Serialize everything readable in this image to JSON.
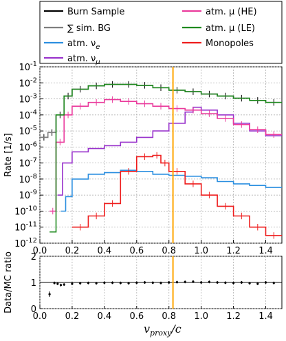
{
  "chart_data": [
    {
      "type": "line",
      "panel": "main",
      "ylabel": "Rate [1/s]",
      "yscale": "log",
      "ylim": [
        1e-12,
        0.1
      ],
      "xlim": [
        0.0,
        1.5
      ],
      "grid": true,
      "legend_position": "top (above plot)",
      "x_ticks": [
        "0.0",
        "0.2",
        "0.4",
        "0.6",
        "0.8",
        "1.0",
        "1.2",
        "1.4"
      ],
      "y_ticks": [
        "10^-12",
        "10^-11",
        "10^-10",
        "10^-9",
        "10^-8",
        "10^-7",
        "10^-6",
        "10^-5",
        "10^-4",
        "10^-3",
        "10^-2",
        "10^-1"
      ],
      "cut_line_x": 0.825,
      "series": [
        {
          "name": "Burn Sample",
          "color": "#000000",
          "style": "steps-with-errorbars",
          "x": [
            0.0,
            0.05,
            0.1,
            0.15,
            0.2,
            0.3,
            0.4,
            0.5,
            0.6,
            0.7,
            0.8,
            0.9,
            1.0,
            1.1,
            1.2,
            1.3,
            1.4,
            1.5
          ],
          "y": [
            4e-06,
            8e-06,
            0.0001,
            0.0015,
            0.004,
            0.0065,
            0.008,
            0.008,
            0.007,
            0.005,
            0.0035,
            0.0028,
            0.002,
            0.0015,
            0.0011,
            0.0008,
            0.0006,
            0.0004
          ]
        },
        {
          "name": "sim. BG",
          "label_prefix": "∑",
          "color": "#7f7f7f",
          "style": "steps",
          "x": [
            0.0,
            0.05,
            0.1,
            0.15,
            0.2,
            0.3,
            0.4,
            0.5,
            0.6,
            0.7,
            0.8,
            0.9,
            1.0,
            1.1,
            1.2,
            1.3,
            1.4,
            1.5
          ],
          "y": [
            4e-06,
            8e-06,
            0.0001,
            0.0015,
            0.004,
            0.0065,
            0.008,
            0.008,
            0.007,
            0.005,
            0.0035,
            0.0028,
            0.002,
            0.0015,
            0.0011,
            0.0008,
            0.0006,
            0.0004
          ]
        },
        {
          "name": "atm. ν_e",
          "color": "#2b8fe0",
          "style": "steps",
          "x": [
            0.13,
            0.16,
            0.2,
            0.3,
            0.4,
            0.5,
            0.6,
            0.7,
            0.8,
            0.9,
            1.0,
            1.1,
            1.2,
            1.3,
            1.4,
            1.5
          ],
          "y": [
            1e-10,
            8e-10,
            1e-08,
            2e-08,
            2.5e-08,
            3.5e-08,
            3e-08,
            2e-08,
            1.7e-08,
            1.5e-08,
            1.2e-08,
            7e-09,
            5e-09,
            4e-09,
            3e-09,
            2.5e-09
          ]
        },
        {
          "name": "atm. ν_μ",
          "color": "#9933cc",
          "style": "steps",
          "x": [
            0.11,
            0.14,
            0.2,
            0.3,
            0.4,
            0.5,
            0.6,
            0.7,
            0.8,
            0.9,
            0.95,
            1.0,
            1.1,
            1.2,
            1.3,
            1.4,
            1.5
          ],
          "y": [
            1e-09,
            1e-07,
            5e-07,
            8e-07,
            1.2e-06,
            2e-06,
            4e-06,
            1e-05,
            3e-05,
            0.00015,
            0.0003,
            0.0002,
            0.0001,
            3e-05,
            1e-05,
            5e-06,
            3e-06
          ]
        },
        {
          "name": "atm. μ (HE)",
          "color": "#ea3a9c",
          "style": "steps-with-errorbars",
          "x": [
            0.06,
            0.1,
            0.15,
            0.2,
            0.3,
            0.4,
            0.5,
            0.6,
            0.7,
            0.8,
            0.9,
            1.0,
            1.1,
            1.2,
            1.3,
            1.4,
            1.5
          ],
          "y": [
            1e-10,
            2e-06,
            0.0001,
            0.00035,
            0.0006,
            0.0009,
            0.0007,
            0.0005,
            0.00035,
            0.00025,
            0.0002,
            0.00012,
            6e-05,
            2.5e-05,
            1.2e-05,
            6e-06,
            3e-06
          ]
        },
        {
          "name": "atm. μ (LE)",
          "color": "#1f8a1f",
          "style": "steps",
          "x": [
            0.06,
            0.1,
            0.15,
            0.2,
            0.3,
            0.4,
            0.5,
            0.6,
            0.7,
            0.8,
            0.9,
            1.0,
            1.1,
            1.2,
            1.3,
            1.4,
            1.5
          ],
          "y": [
            5e-12,
            0.0001,
            0.0015,
            0.004,
            0.0065,
            0.008,
            0.008,
            0.007,
            0.005,
            0.0035,
            0.0028,
            0.002,
            0.0015,
            0.0011,
            0.0008,
            0.0006,
            0.0004
          ]
        },
        {
          "name": "Monopoles",
          "color": "#ee1c1c",
          "style": "steps-with-errorbars",
          "x": [
            0.2,
            0.3,
            0.4,
            0.5,
            0.6,
            0.7,
            0.75,
            0.8,
            0.9,
            1.0,
            1.1,
            1.2,
            1.3,
            1.4,
            1.5
          ],
          "y": [
            1e-11,
            5e-11,
            3e-10,
            3e-08,
            2.5e-07,
            3e-07,
            1e-07,
            3e-08,
            5e-09,
            1e-09,
            2e-10,
            5e-11,
            1e-11,
            3e-12,
            2e-12
          ]
        }
      ]
    },
    {
      "type": "scatter",
      "panel": "ratio",
      "ylabel": "Data/MC ratio",
      "xlabel": "v_proxy/c",
      "xlim": [
        0.0,
        1.5
      ],
      "ylim": [
        0,
        2
      ],
      "y_ticks": [
        "0",
        "1",
        "2"
      ],
      "x_ticks": [
        "0.0",
        "0.2",
        "0.4",
        "0.6",
        "0.8",
        "1.0",
        "1.2",
        "1.4"
      ],
      "reference_line": 1.0,
      "cut_line_x": 0.825,
      "x": [
        0.06,
        0.09,
        0.11,
        0.13,
        0.15,
        0.2,
        0.25,
        0.3,
        0.35,
        0.4,
        0.45,
        0.5,
        0.55,
        0.6,
        0.65,
        0.7,
        0.75,
        0.8,
        0.85,
        0.9,
        0.95,
        1.0,
        1.05,
        1.1,
        1.15,
        1.2,
        1.25,
        1.3,
        1.35,
        1.4,
        1.45
      ],
      "values": [
        0.55,
        0.98,
        0.95,
        0.9,
        0.92,
        0.95,
        0.97,
        0.98,
        0.97,
        0.99,
        0.99,
        0.98,
        0.97,
        0.99,
        1.0,
        0.99,
        0.98,
        1.0,
        1.01,
        1.02,
        1.03,
        1.0,
        1.02,
        1.0,
        0.99,
        0.98,
        1.0,
        0.97,
        0.95,
        1.0,
        0.98
      ]
    }
  ],
  "legend": {
    "items": [
      {
        "label": "Burn Sample",
        "color": "#000000"
      },
      {
        "label": "∑ sim. BG",
        "color": "#7f7f7f"
      },
      {
        "label": "atm. ν",
        "sub": "e",
        "color": "#2b8fe0"
      },
      {
        "label": "atm. ν",
        "sub": "μ",
        "color": "#9933cc"
      },
      {
        "label": "atm. μ (HE)",
        "color": "#ea3a9c"
      },
      {
        "label": "atm. μ (LE)",
        "color": "#1f8a1f"
      },
      {
        "label": "Monopoles",
        "color": "#ee1c1c"
      }
    ]
  },
  "xlabel_text": {
    "v": "v",
    "sub": "proxy",
    "rest": "/c"
  },
  "colors": {
    "cut_line": "#ffa500",
    "grid": "#b0b0b0"
  }
}
